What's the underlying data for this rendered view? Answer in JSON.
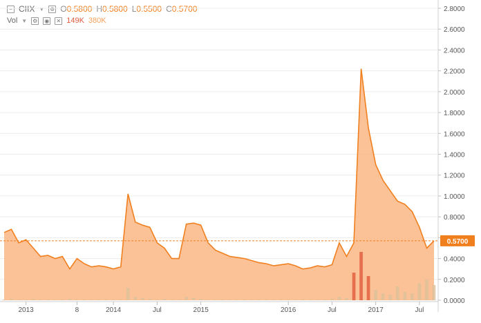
{
  "toolbar": {
    "symbol": "CIIX",
    "open_label": "O",
    "open_value": "0.5800",
    "high_label": "H",
    "high_value": "0.5800",
    "low_label": "L",
    "low_value": "0.5500",
    "close_label": "C",
    "close_value": "0.5700",
    "vol_label": "Vol",
    "vol_value_1": "149K",
    "vol_value_2": "380K"
  },
  "colors": {
    "accent": "#f07f1e",
    "area": "#fbb785",
    "vol_bars": "#dcc19a",
    "vol_red": "#e05a3b"
  },
  "chart_data": {
    "type": "area",
    "x_tick_labels": [
      "2013",
      "8",
      "2014",
      "Jul",
      "2015",
      "2016",
      "Jul",
      "2017",
      "Jul"
    ],
    "y_tick_labels": [
      "0.0000",
      "0.2000",
      "0.4000",
      "0.6000",
      "0.8000",
      "1.0000",
      "1.2000",
      "1.4000",
      "1.6000",
      "1.8000",
      "2.0000",
      "2.2000",
      "2.4000",
      "2.6000",
      "2.8000"
    ],
    "ylim": [
      0,
      2.8
    ],
    "last_price_label": "0.5700",
    "last_price": 0.57,
    "grid": true,
    "x": [
      "2012-10",
      "2012-11",
      "2012-12",
      "2013-01",
      "2013-02",
      "2013-03",
      "2013-04",
      "2013-05",
      "2013-06",
      "2013-07",
      "2013-08",
      "2013-09",
      "2013-10",
      "2013-11",
      "2013-12",
      "2014-01",
      "2014-02",
      "2014-03",
      "2014-04",
      "2014-05",
      "2014-06",
      "2014-07",
      "2014-08",
      "2014-09",
      "2014-10",
      "2014-11",
      "2014-12",
      "2015-01",
      "2015-02",
      "2015-03",
      "2015-04",
      "2015-05",
      "2015-06",
      "2015-07",
      "2015-08",
      "2015-09",
      "2015-10",
      "2015-11",
      "2015-12",
      "2016-01",
      "2016-02",
      "2016-03",
      "2016-04",
      "2016-05",
      "2016-06",
      "2016-07",
      "2016-08",
      "2016-09",
      "2016-10",
      "2016-11",
      "2016-12",
      "2017-01",
      "2017-02",
      "2017-03",
      "2017-04",
      "2017-05",
      "2017-06",
      "2017-07",
      "2017-08",
      "2017-09"
    ],
    "close": [
      0.65,
      0.68,
      0.55,
      0.58,
      0.5,
      0.42,
      0.43,
      0.4,
      0.42,
      0.3,
      0.4,
      0.35,
      0.32,
      0.33,
      0.32,
      0.3,
      0.32,
      1.02,
      0.75,
      0.72,
      0.7,
      0.55,
      0.5,
      0.4,
      0.4,
      0.73,
      0.74,
      0.72,
      0.55,
      0.48,
      0.45,
      0.42,
      0.41,
      0.4,
      0.38,
      0.36,
      0.35,
      0.33,
      0.34,
      0.35,
      0.33,
      0.3,
      0.31,
      0.33,
      0.32,
      0.34,
      0.55,
      0.42,
      0.55,
      2.22,
      1.65,
      1.3,
      1.15,
      1.05,
      0.95,
      0.92,
      0.85,
      0.7,
      0.5,
      0.57
    ],
    "volume": [
      0.01,
      0.02,
      0.01,
      0.01,
      0.02,
      0.01,
      0.01,
      0.01,
      0.01,
      0.02,
      0.01,
      0.01,
      0.01,
      0.01,
      0.01,
      0.01,
      0.01,
      0.18,
      0.05,
      0.03,
      0.02,
      0.01,
      0.02,
      0.01,
      0.01,
      0.05,
      0.03,
      0.02,
      0.01,
      0.01,
      0.01,
      0.01,
      0.01,
      0.01,
      0.01,
      0.01,
      0.01,
      0.01,
      0.01,
      0.01,
      0.01,
      0.01,
      0.01,
      0.01,
      0.01,
      0.02,
      0.05,
      0.03,
      0.4,
      0.7,
      0.35,
      0.15,
      0.1,
      0.08,
      0.2,
      0.12,
      0.1,
      0.25,
      0.3,
      0.22
    ]
  }
}
